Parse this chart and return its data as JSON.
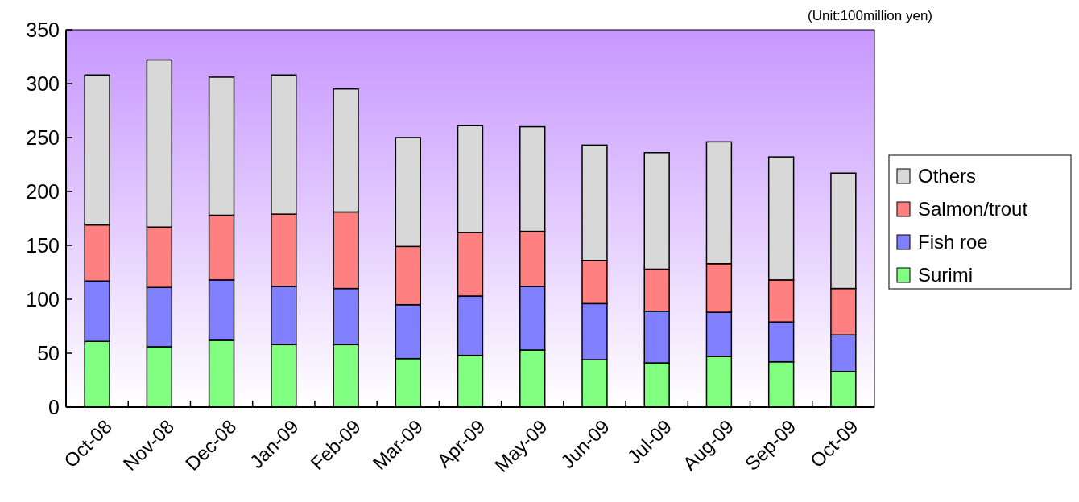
{
  "chart_data": {
    "type": "bar",
    "stacked": true,
    "categories": [
      "Oct-08",
      "Nov-08",
      "Dec-08",
      "Jan-09",
      "Feb-09",
      "Mar-09",
      "Apr-09",
      "May-09",
      "Jun-09",
      "Jul-09",
      "Aug-09",
      "Sep-09",
      "Oct-09"
    ],
    "series": [
      {
        "name": "Surimi",
        "color": "#80ff80",
        "values": [
          61,
          56,
          62,
          58,
          58,
          45,
          48,
          53,
          44,
          41,
          47,
          42,
          33
        ]
      },
      {
        "name": "Fish roe",
        "color": "#8080ff",
        "values": [
          56,
          55,
          56,
          54,
          52,
          50,
          55,
          59,
          52,
          48,
          41,
          37,
          34
        ]
      },
      {
        "name": "Salmon/trout",
        "color": "#ff8080",
        "values": [
          52,
          56,
          60,
          67,
          71,
          54,
          59,
          51,
          40,
          39,
          45,
          39,
          43
        ]
      },
      {
        "name": "Others",
        "color": "#d8d8d8",
        "values": [
          139,
          155,
          128,
          129,
          114,
          101,
          99,
          97,
          107,
          108,
          113,
          114,
          107
        ]
      }
    ],
    "ylim": [
      0,
      350
    ],
    "yticks": [
      0,
      50,
      100,
      150,
      200,
      250,
      300,
      350
    ],
    "grid": false,
    "legend": "right",
    "annotations": [
      "(Unit:100million yen)"
    ]
  }
}
